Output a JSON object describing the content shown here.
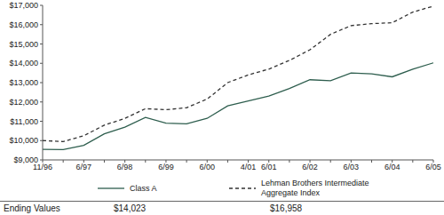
{
  "chart_data": {
    "type": "line",
    "categories": [
      "11/96",
      null,
      "6/97",
      null,
      "6/98",
      null,
      "6/99",
      null,
      "6/00",
      null,
      "4/01",
      "6/01",
      null,
      "6/02",
      null,
      "6/03",
      null,
      "6/04",
      null,
      "6/05"
    ],
    "series": [
      {
        "name": "Class A",
        "color": "#2e5e4e",
        "line_style": "solid",
        "values": [
          9550,
          9530,
          9750,
          10350,
          10700,
          11200,
          10900,
          10870,
          11150,
          11800,
          12050,
          12300,
          12700,
          13150,
          13100,
          13500,
          13450,
          13300,
          13700,
          14023
        ]
      },
      {
        "name": "Lehman Brothers Intermediate Aggregate Index",
        "color": "#333333",
        "line_style": "dashed",
        "values": [
          10000,
          9950,
          10250,
          10800,
          11150,
          11650,
          11600,
          11700,
          12150,
          13000,
          13400,
          13700,
          14150,
          14700,
          15500,
          15950,
          16050,
          16100,
          16650,
          16958
        ]
      }
    ],
    "ylim": [
      9000,
      17000
    ],
    "yticks": [
      {
        "value": 9000,
        "label": "$9,000"
      },
      {
        "value": 10000,
        "label": "$10,000"
      },
      {
        "value": 11000,
        "label": "$11,000"
      },
      {
        "value": 12000,
        "label": "$12,000"
      },
      {
        "value": 13000,
        "label": "$13,000"
      },
      {
        "value": 14000,
        "label": "$14,000"
      },
      {
        "value": 15000,
        "label": "$15,000"
      },
      {
        "value": 16000,
        "label": "$16,000"
      },
      {
        "value": 17000,
        "label": "$17,000"
      }
    ],
    "grid": false,
    "ending_values": {
      "label": "Ending Values",
      "values": [
        "$14,023",
        "$16,958"
      ]
    }
  }
}
